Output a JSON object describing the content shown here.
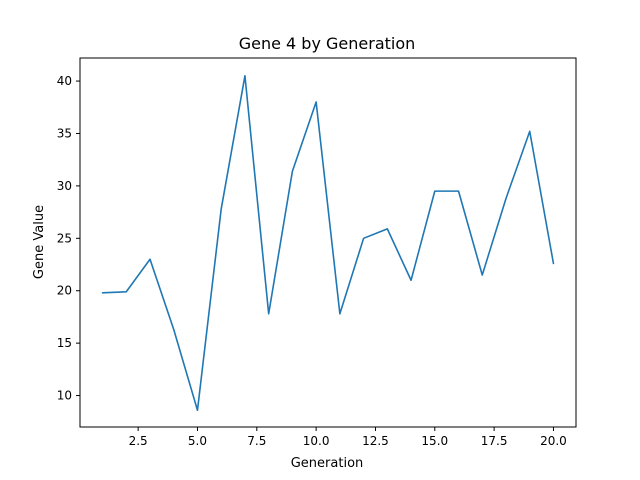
{
  "chart_data": {
    "type": "line",
    "title": "Gene 4 by Generation",
    "xlabel": "Generation",
    "ylabel": "Gene Value",
    "xlim": [
      0.05,
      20.95
    ],
    "ylim": [
      7.0,
      42.2
    ],
    "xticks": [
      2.5,
      5.0,
      7.5,
      10.0,
      12.5,
      15.0,
      17.5,
      20.0
    ],
    "xtick_labels": [
      "2.5",
      "5.0",
      "7.5",
      "10.0",
      "12.5",
      "15.0",
      "17.5",
      "20.0"
    ],
    "yticks": [
      10,
      15,
      20,
      25,
      30,
      35,
      40
    ],
    "ytick_labels": [
      "10",
      "15",
      "20",
      "25",
      "30",
      "35",
      "40"
    ],
    "grid": false,
    "series": [
      {
        "color": "#1f77b4",
        "x": [
          1,
          2,
          3,
          4,
          5,
          6,
          7,
          8,
          9,
          10,
          11,
          12,
          13,
          14,
          15,
          16,
          17,
          18,
          19,
          20
        ],
        "y": [
          19.8,
          19.9,
          23.0,
          16.3,
          8.6,
          27.8,
          40.5,
          17.8,
          31.4,
          38.0,
          17.8,
          25.0,
          25.9,
          21.0,
          29.5,
          29.5,
          21.5,
          28.8,
          35.2,
          22.6
        ]
      }
    ]
  }
}
